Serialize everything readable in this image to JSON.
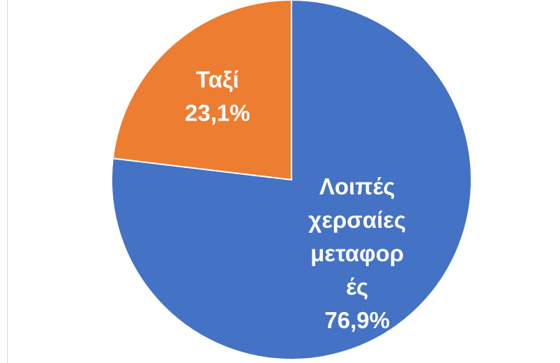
{
  "chart_data": {
    "type": "pie",
    "title": "",
    "slices": [
      {
        "label": "Λοιπές χερσαίες μεταφορές",
        "label_lines": [
          "Λοιπές",
          "χερσαίες",
          "μεταφορ",
          "ές"
        ],
        "value": 76.9,
        "value_label": "76,9%",
        "color": "#4472C4"
      },
      {
        "label": "Ταξί",
        "label_lines": [
          "Ταξί"
        ],
        "value": 23.1,
        "value_label": "23,1%",
        "color": "#ED7D31"
      }
    ],
    "start_angle_deg": 0,
    "direction": "clockwise",
    "slice_border_color": "#ffffff"
  }
}
